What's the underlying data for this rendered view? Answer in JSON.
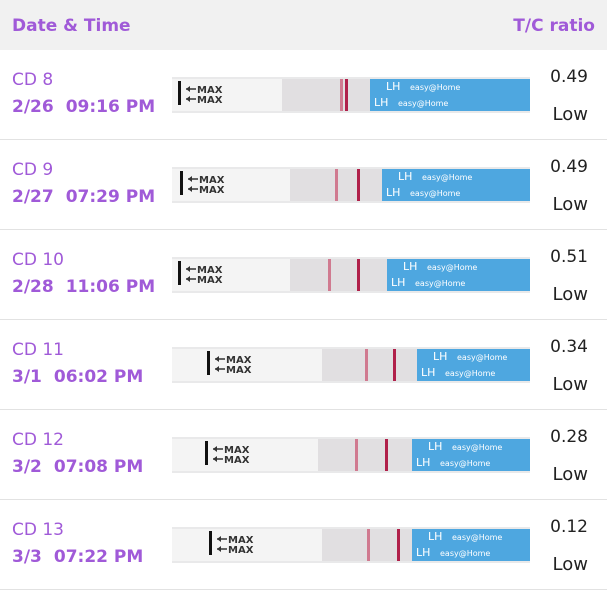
{
  "header": {
    "left": "Date & Time",
    "right": "T/C ratio"
  },
  "strip_labels": {
    "max": "MAX",
    "lh": "LH",
    "brand": "easy@Home"
  },
  "rows": [
    {
      "cycle_day": "CD 8",
      "date": "2/26",
      "time": "09:16 PM",
      "ratio": 0.49,
      "level": "Low"
    },
    {
      "cycle_day": "CD 9",
      "date": "2/27",
      "time": "07:29 PM",
      "ratio": 0.49,
      "level": "Low"
    },
    {
      "cycle_day": "CD 10",
      "date": "2/28",
      "time": "11:06 PM",
      "ratio": 0.51,
      "level": "Low"
    },
    {
      "cycle_day": "CD 11",
      "date": "3/1",
      "time": "06:02 PM",
      "ratio": 0.34,
      "level": "Low"
    },
    {
      "cycle_day": "CD 12",
      "date": "3/2",
      "time": "07:08 PM",
      "ratio": 0.28,
      "level": "Low"
    },
    {
      "cycle_day": "CD 13",
      "date": "3/3",
      "time": "07:22 PM",
      "ratio": 0.12,
      "level": "Low"
    }
  ]
}
